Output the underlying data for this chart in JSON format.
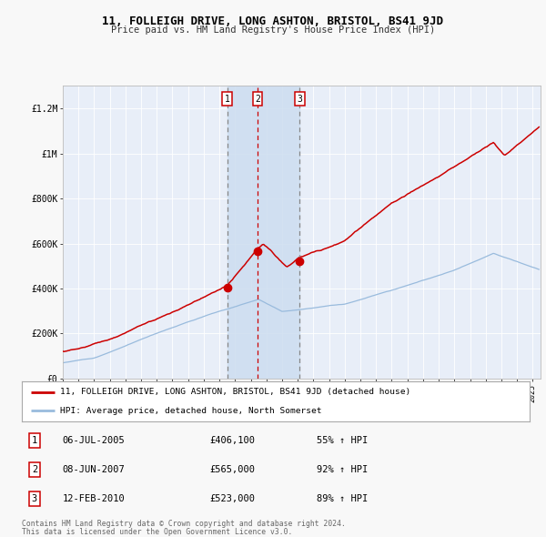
{
  "title": "11, FOLLEIGH DRIVE, LONG ASHTON, BRISTOL, BS41 9JD",
  "subtitle": "Price paid vs. HM Land Registry's House Price Index (HPI)",
  "legend_line1": "11, FOLLEIGH DRIVE, LONG ASHTON, BRISTOL, BS41 9JD (detached house)",
  "legend_line2": "HPI: Average price, detached house, North Somerset",
  "footer1": "Contains HM Land Registry data © Crown copyright and database right 2024.",
  "footer2": "This data is licensed under the Open Government Licence v3.0.",
  "transactions": [
    {
      "num": 1,
      "date": "06-JUL-2005",
      "price": 406100,
      "pct": "55% ↑ HPI",
      "year": 2005.5
    },
    {
      "num": 2,
      "date": "08-JUN-2007",
      "price": 565000,
      "pct": "92% ↑ HPI",
      "year": 2007.44
    },
    {
      "num": 3,
      "date": "12-FEB-2010",
      "price": 523000,
      "pct": "89% ↑ HPI",
      "year": 2010.12
    }
  ],
  "fig_bg": "#f8f8f8",
  "plot_bg": "#e8eef8",
  "highlight_bg": "#ccddf0",
  "red_line_color": "#cc0000",
  "blue_line_color": "#99bbdd",
  "marker_color": "#cc0000",
  "vline_gray": "#888888",
  "vline_red": "#cc0000",
  "ylim": [
    0,
    1300000
  ],
  "xlim_start": 1995,
  "xlim_end": 2025.5,
  "yticks": [
    0,
    200000,
    400000,
    600000,
    800000,
    1000000,
    1200000
  ],
  "ylabels": [
    "£0",
    "£200K",
    "£400K",
    "£600K",
    "£800K",
    "£1M",
    "£1.2M"
  ]
}
